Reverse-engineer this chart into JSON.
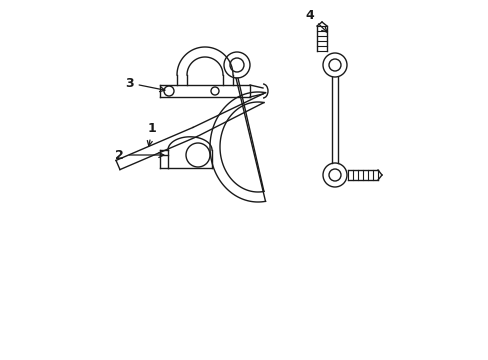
{
  "bg_color": "#ffffff",
  "line_color": "#1a1a1a",
  "fig_width": 4.89,
  "fig_height": 3.6,
  "lw": 1.0
}
